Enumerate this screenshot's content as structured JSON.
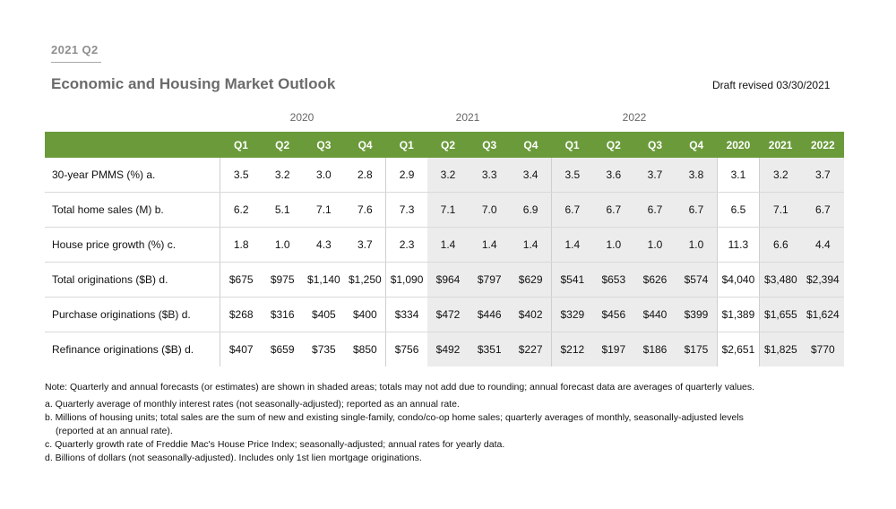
{
  "header": {
    "eyebrow": "2021 Q2",
    "title": "Economic and Housing Market Outlook",
    "revised": "Draft revised 03/30/2021"
  },
  "years": [
    "2020",
    "2021",
    "2022"
  ],
  "columns": [
    "Q1",
    "Q2",
    "Q3",
    "Q4",
    "Q1",
    "Q2",
    "Q3",
    "Q4",
    "Q1",
    "Q2",
    "Q3",
    "Q4",
    "2020",
    "2021",
    "2022"
  ],
  "rows": [
    {
      "label": "30-year PMMS (%) a.",
      "values": [
        "3.5",
        "3.2",
        "3.0",
        "2.8",
        "2.9",
        "3.2",
        "3.3",
        "3.4",
        "3.5",
        "3.6",
        "3.7",
        "3.8",
        "3.1",
        "3.2",
        "3.7"
      ]
    },
    {
      "label": "Total home sales (M) b.",
      "values": [
        "6.2",
        "5.1",
        "7.1",
        "7.6",
        "7.3",
        "7.1",
        "7.0",
        "6.9",
        "6.7",
        "6.7",
        "6.7",
        "6.7",
        "6.5",
        "7.1",
        "6.7"
      ]
    },
    {
      "label": "House price growth (%) c.",
      "values": [
        "1.8",
        "1.0",
        "4.3",
        "3.7",
        "2.3",
        "1.4",
        "1.4",
        "1.4",
        "1.4",
        "1.0",
        "1.0",
        "1.0",
        "11.3",
        "6.6",
        "4.4"
      ]
    },
    {
      "label": "Total originations ($B) d.",
      "values": [
        "$675",
        "$975",
        "$1,140",
        "$1,250",
        "$1,090",
        "$964",
        "$797",
        "$629",
        "$541",
        "$653",
        "$626",
        "$574",
        "$4,040",
        "$3,480",
        "$2,394"
      ]
    },
    {
      "label": "Purchase originations ($B) d.",
      "values": [
        "$268",
        "$316",
        "$405",
        "$400",
        "$334",
        "$472",
        "$446",
        "$402",
        "$329",
        "$456",
        "$440",
        "$399",
        "$1,389",
        "$1,655",
        "$1,624"
      ]
    },
    {
      "label": "Refinance originations ($B) d.",
      "values": [
        "$407",
        "$659",
        "$735",
        "$850",
        "$756",
        "$492",
        "$351",
        "$227",
        "$212",
        "$197",
        "$186",
        "$175",
        "$2,651",
        "$1,825",
        "$770"
      ]
    }
  ],
  "notes": {
    "main": "Note: Quarterly and annual forecasts (or estimates) are shown in shaded areas; totals may not add due to rounding; annual forecast data are averages of quarterly values.",
    "a": "a. Quarterly average of monthly interest rates (not seasonally-adjusted); reported as an annual rate.",
    "b1": "b. Millions of housing units; total sales are the sum of new and existing single-family, condo/co-op home sales; quarterly averages of monthly, seasonally-adjusted levels",
    "b2": "(reported at an annual rate).",
    "c": "c. Quarterly growth rate of Freddie Mac's House Price Index; seasonally-adjusted; annual rates for yearly data.",
    "d": "d. Billions of dollars (not seasonally-adjusted). Includes only 1st lien mortgage originations."
  },
  "colors": {
    "header_green": "#6a9a3a",
    "shade": "#ececec",
    "title_gray": "#6b6b6b"
  }
}
